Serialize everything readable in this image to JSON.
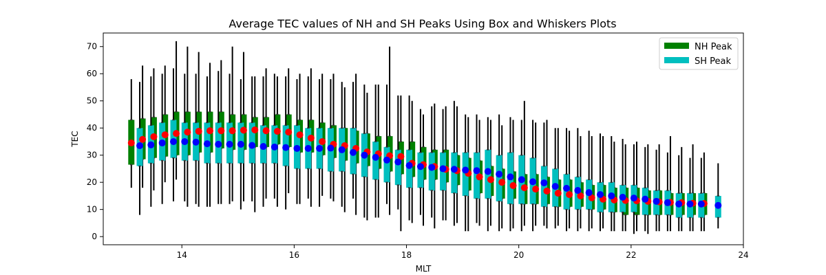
{
  "chart_data": {
    "type": "box",
    "title": "Average TEC values of NH and SH Peaks Using Box and Whiskers Plots",
    "xlabel": "MLT",
    "ylabel": "TEC",
    "xlim": [
      12.6,
      24.0
    ],
    "ylim": [
      -3,
      75
    ],
    "xticks": [
      14,
      16,
      18,
      20,
      22,
      24
    ],
    "yticks": [
      0,
      10,
      20,
      30,
      40,
      50,
      60,
      70
    ],
    "legend_position": "top-right",
    "grid": false,
    "series": [
      {
        "name": "NH Peak",
        "box_color": "#008000",
        "mean_color": "#ff0000",
        "x": [
          13.1,
          13.3,
          13.5,
          13.7,
          13.9,
          14.1,
          14.3,
          14.5,
          14.7,
          14.9,
          15.1,
          15.3,
          15.5,
          15.7,
          15.9,
          16.1,
          16.3,
          16.5,
          16.7,
          16.9,
          17.1,
          17.3,
          17.5,
          17.7,
          17.9,
          18.1,
          18.3,
          18.5,
          18.7,
          18.9,
          19.1,
          19.3,
          19.5,
          19.7,
          19.9,
          20.1,
          20.3,
          20.5,
          20.7,
          20.9,
          21.1,
          21.3,
          21.5,
          21.7,
          21.9,
          22.1,
          22.3,
          22.5,
          22.7,
          22.9,
          23.1,
          23.3
        ],
        "q1": [
          26.5,
          28.5,
          29,
          29.5,
          30,
          30,
          31,
          31,
          32.5,
          32,
          32,
          33,
          33,
          34,
          33,
          31,
          31,
          30,
          29,
          28,
          27,
          26,
          25,
          24,
          23,
          22,
          21,
          21,
          20,
          19,
          17,
          16,
          15,
          14,
          14,
          12,
          12,
          12,
          11,
          11,
          11,
          10,
          10,
          9,
          8,
          8,
          8,
          8,
          8,
          8,
          8,
          8
        ],
        "q3": [
          43,
          43.5,
          44,
          45,
          46,
          46,
          46,
          46,
          46,
          45,
          45,
          44,
          44,
          45,
          45,
          43,
          43,
          42,
          41,
          40,
          39,
          38,
          37,
          37,
          35,
          35,
          33,
          32,
          32,
          30,
          29,
          28,
          26,
          25,
          24,
          23,
          23,
          22,
          21,
          21,
          20,
          19,
          19,
          18,
          18,
          18,
          17,
          17,
          16,
          16,
          16,
          16
        ],
        "median": [
          33,
          35,
          35.5,
          36,
          37,
          37,
          38,
          38,
          39,
          38,
          39,
          39,
          39,
          38,
          38,
          37,
          37,
          36,
          35,
          34,
          33,
          32,
          31,
          31,
          30,
          28,
          27,
          26,
          26,
          25,
          24,
          23,
          22,
          21,
          20,
          19,
          19,
          18,
          17,
          16,
          16,
          15,
          15,
          14,
          14,
          13,
          13,
          13,
          12,
          12,
          12,
          12
        ],
        "whisker_low": [
          18,
          18,
          17,
          20,
          21,
          11,
          11,
          11,
          12,
          13,
          13,
          9,
          14,
          11,
          16,
          12,
          11,
          15,
          13,
          9,
          8,
          6,
          7,
          8,
          2,
          5,
          4,
          3,
          6,
          5,
          2,
          4,
          4,
          3,
          3,
          4,
          4,
          3,
          4,
          3,
          3,
          3,
          3,
          2,
          2,
          2,
          1,
          2,
          2,
          2,
          2,
          2
        ],
        "whisker_high": [
          58,
          63,
          62,
          63,
          72,
          70,
          68,
          64,
          65,
          70,
          68,
          59,
          62,
          59,
          62,
          60,
          62,
          60,
          60,
          55,
          60,
          53,
          56,
          70,
          52,
          50,
          45,
          49,
          48,
          48,
          44,
          43,
          43,
          41,
          43,
          50,
          42,
          43,
          40,
          39,
          37,
          37,
          37,
          35,
          34,
          35,
          34,
          34,
          37,
          33,
          34,
          31
        ],
        "mean": [
          34.5,
          35.8,
          36.8,
          37.5,
          38,
          38.5,
          38.8,
          39,
          39,
          39,
          39.2,
          39.3,
          39,
          38.8,
          38.5,
          37.5,
          36.3,
          35,
          34,
          33.5,
          32.5,
          31.2,
          30.5,
          29.8,
          29.5,
          27,
          26.5,
          25.8,
          24.8,
          24.3,
          23.3,
          22,
          21,
          20,
          18.8,
          18,
          17.5,
          16.8,
          16,
          15.5,
          15,
          14.3,
          13.8,
          13.5,
          13.3,
          13.2,
          13,
          12.8,
          12.6,
          12.5,
          12.3,
          12.2
        ]
      },
      {
        "name": "SH Peak",
        "box_color": "#00bfbf",
        "mean_color": "#0000ff",
        "x": [
          13.25,
          13.45,
          13.65,
          13.85,
          14.05,
          14.25,
          14.45,
          14.65,
          14.85,
          15.05,
          15.25,
          15.45,
          15.65,
          15.85,
          16.05,
          16.25,
          16.45,
          16.65,
          16.85,
          17.05,
          17.25,
          17.45,
          17.65,
          17.85,
          18.05,
          18.25,
          18.45,
          18.65,
          18.85,
          19.05,
          19.25,
          19.45,
          19.65,
          19.85,
          20.05,
          20.25,
          20.45,
          20.65,
          20.85,
          21.05,
          21.25,
          21.45,
          21.65,
          21.85,
          22.05,
          22.25,
          22.45,
          22.65,
          22.85,
          23.05,
          23.25,
          23.55
        ],
        "q1": [
          26,
          27,
          28,
          29,
          28,
          28,
          27,
          27,
          27,
          27,
          27,
          27,
          27,
          26,
          25,
          25,
          25,
          24,
          24,
          23,
          22,
          21,
          20,
          19,
          18,
          18,
          17,
          17,
          16,
          15,
          14,
          14,
          13,
          12,
          12,
          12,
          11,
          11,
          10,
          10,
          10,
          9,
          9,
          9,
          9,
          8,
          8,
          8,
          7,
          7,
          7,
          7
        ],
        "q3": [
          40,
          41,
          42,
          43,
          42,
          42,
          42,
          42,
          42,
          42,
          42,
          41,
          41,
          41,
          41,
          40,
          40,
          40,
          40,
          40,
          38,
          35,
          33,
          32,
          32,
          31,
          31,
          31,
          31,
          31,
          31,
          32,
          30,
          31,
          30,
          29,
          26,
          25,
          23,
          22,
          21,
          20,
          20,
          19,
          19,
          18,
          17,
          17,
          16,
          16,
          16,
          15
        ],
        "median": [
          33,
          34,
          34,
          35,
          35,
          35,
          34,
          34,
          34,
          34,
          34,
          33,
          33,
          33,
          33,
          32,
          32,
          32,
          31,
          31,
          30,
          29,
          28,
          27,
          26,
          26,
          25,
          25,
          25,
          24,
          24,
          23,
          23,
          22,
          21,
          21,
          20,
          19,
          18,
          17,
          16,
          16,
          15,
          15,
          14,
          13,
          13,
          13,
          12,
          12,
          12,
          11
        ],
        "whisker_low": [
          8,
          11,
          12,
          13,
          13,
          12,
          11,
          12,
          12,
          10,
          13,
          11,
          14,
          10,
          12,
          14,
          11,
          14,
          11,
          14,
          7,
          7,
          12,
          10,
          6,
          8,
          7,
          6,
          4,
          2,
          5,
          2,
          2,
          2,
          2,
          2,
          4,
          3,
          2,
          2,
          2,
          2,
          2,
          2,
          1,
          2,
          2,
          2,
          2,
          2,
          2,
          3
        ],
        "whisker_high": [
          57,
          59,
          60,
          62,
          60,
          60,
          59,
          61,
          60,
          58,
          59,
          59,
          60,
          59,
          58,
          59,
          58,
          58,
          57,
          57,
          56,
          56,
          56,
          52,
          52,
          47,
          48,
          47,
          50,
          45,
          45,
          44,
          45,
          44,
          43,
          43,
          42,
          40,
          40,
          40,
          39,
          38,
          37,
          36,
          34,
          33,
          32,
          31,
          30,
          29,
          29,
          27
        ],
        "mean": [
          33.5,
          33.8,
          34.5,
          35,
          35,
          34.8,
          34.2,
          34,
          34,
          34,
          33.6,
          33.2,
          33,
          32.8,
          32.5,
          32.5,
          32.5,
          32.6,
          32,
          31,
          30,
          29.2,
          28.2,
          27.5,
          26.2,
          25.8,
          25.5,
          25,
          24.8,
          24.5,
          24.3,
          24,
          23,
          22,
          21,
          20.2,
          19.8,
          18.5,
          17.8,
          17,
          16.2,
          15.5,
          15,
          14.5,
          14.2,
          13.8,
          13,
          12.5,
          12,
          12,
          12,
          11.5
        ]
      }
    ]
  }
}
